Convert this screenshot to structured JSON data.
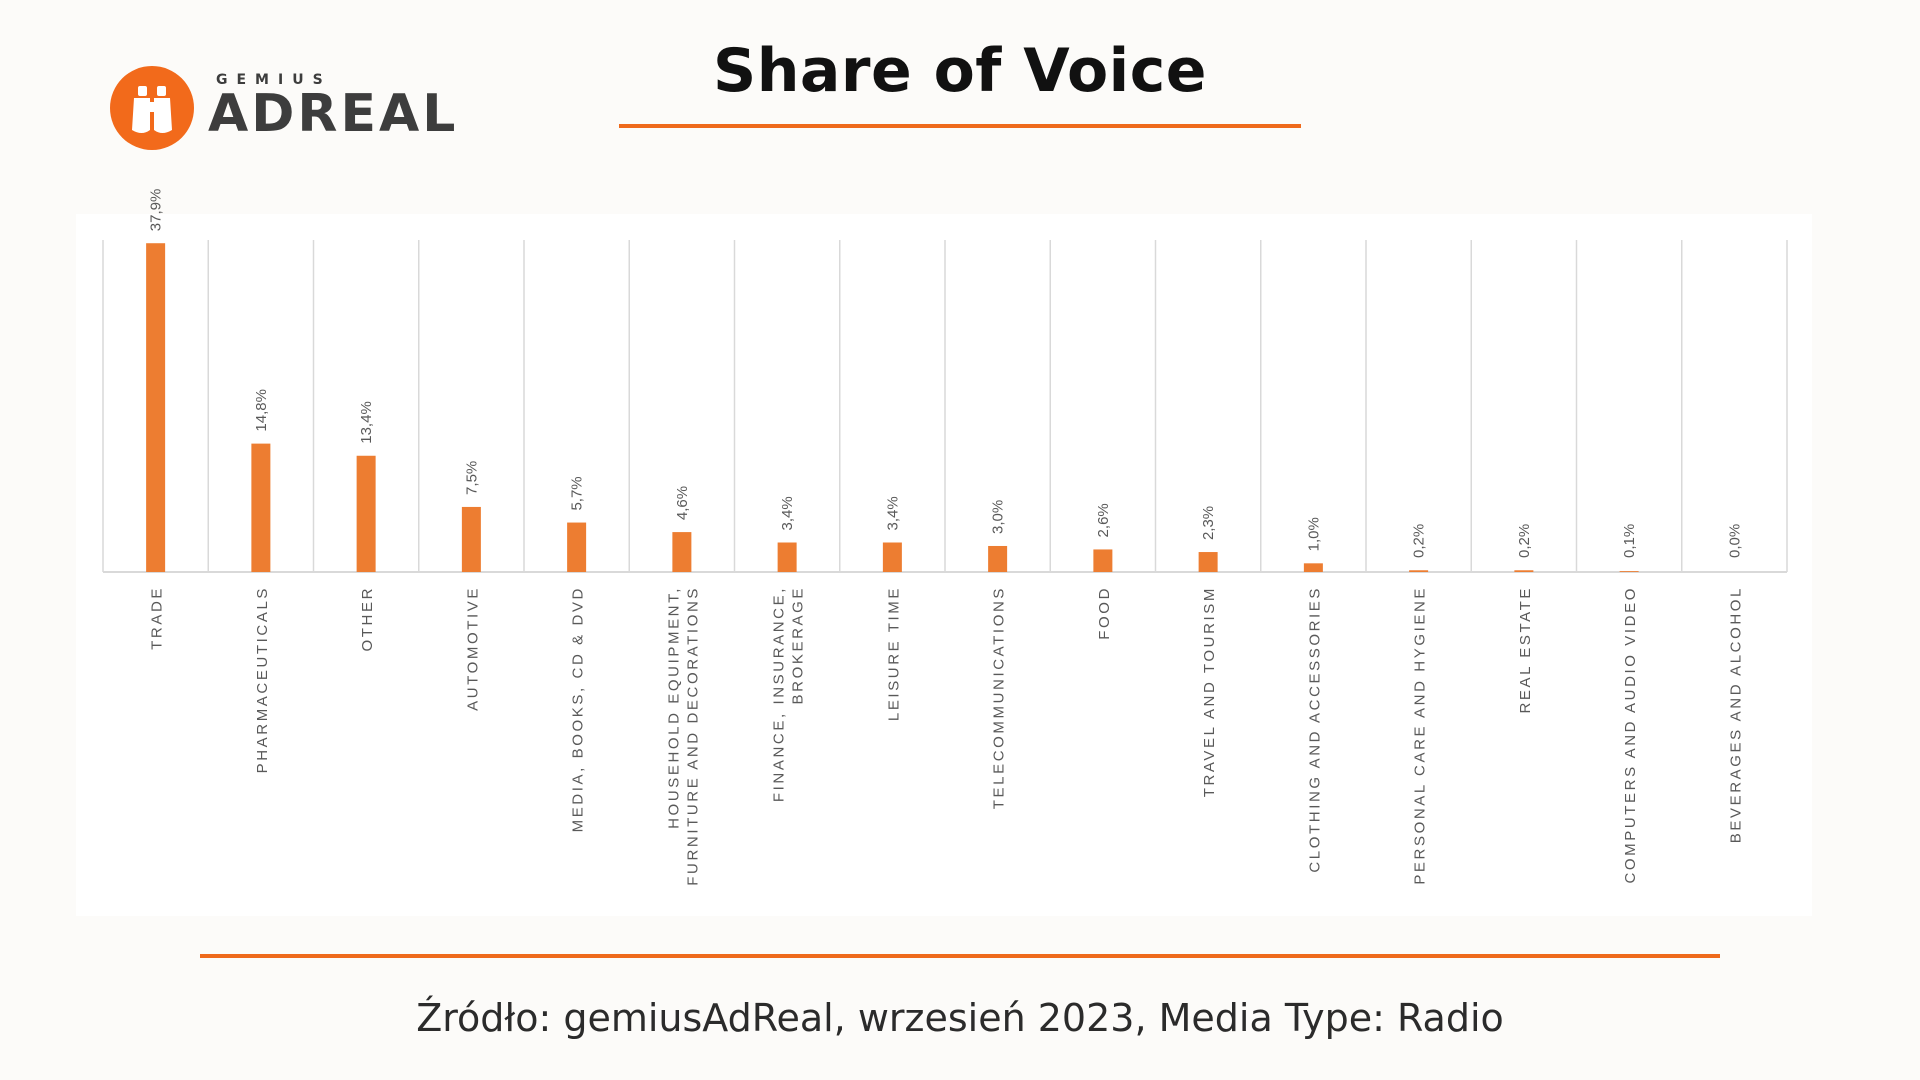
{
  "logo": {
    "brand_small": "GEMIUS",
    "brand_big": "ADREAL"
  },
  "title": "Share of Voice",
  "source": "Źródło: gemiusAdReal, wrzesień 2023, Media Type: Radio",
  "colors": {
    "accent": "#ef6a1c",
    "bar": "#ed7d31",
    "grid": "#d9d9d9",
    "label": "#595959"
  },
  "chart_data": {
    "type": "bar",
    "categories": [
      "TRADE",
      "PHARMACEUTICALS",
      "OTHER",
      "AUTOMOTIVE",
      "MEDIA, BOOKS, CD & DVD",
      [
        "HOUSEHOLD EQUIPMENT,",
        "FURNITURE AND DECORATIONS"
      ],
      [
        "FINANCE, INSURANCE,",
        "BROKERAGE"
      ],
      "LEISURE TIME",
      "TELECOMMUNICATIONS",
      "FOOD",
      "TRAVEL AND TOURISM",
      "CLOTHING AND ACCESSORIES",
      "PERSONAL CARE AND HYGIENE",
      "REAL ESTATE",
      "COMPUTERS AND AUDIO VIDEO",
      "BEVERAGES AND ALCOHOL"
    ],
    "values": [
      37.9,
      14.8,
      13.4,
      7.5,
      5.7,
      4.6,
      3.4,
      3.4,
      3.0,
      2.6,
      2.3,
      1.0,
      0.2,
      0.2,
      0.1,
      0.0
    ],
    "data_labels": [
      "37,9%",
      "14,8%",
      "13,4%",
      "7,5%",
      "5,7%",
      "4,6%",
      "3,4%",
      "3,4%",
      "3,0%",
      "2,6%",
      "2,3%",
      "1,0%",
      "0,2%",
      "0,2%",
      "0,1%",
      "0,0%"
    ],
    "ylim": [
      0,
      40
    ],
    "grid": "vertical category separators"
  }
}
